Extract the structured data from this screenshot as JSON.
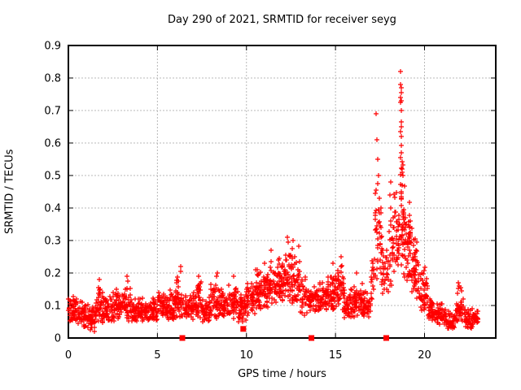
{
  "title": "Day 290 of 2021, SRMTID for receiver seyg",
  "colors": {
    "background": "#ffffff",
    "border": "#000000",
    "grid": "#b8b8b8",
    "marker": "#ff0000",
    "text": "#000000"
  },
  "chart_data": {
    "type": "scatter",
    "title": "Day 290 of 2021, SRMTID for receiver seyg",
    "xlabel": "GPS time / hours",
    "ylabel": "SRMTID / TECUs",
    "xlim": [
      0,
      24
    ],
    "ylim": [
      0,
      0.9
    ],
    "xticks": [
      {
        "value": 0,
        "label": "0"
      },
      {
        "value": 5,
        "label": "5"
      },
      {
        "value": 10,
        "label": "10"
      },
      {
        "value": 15,
        "label": "15"
      },
      {
        "value": 20,
        "label": "20"
      }
    ],
    "yticks": [
      {
        "value": 0.0,
        "label": "0"
      },
      {
        "value": 0.1,
        "label": "0.1"
      },
      {
        "value": 0.2,
        "label": "0.2"
      },
      {
        "value": 0.3,
        "label": "0.3"
      },
      {
        "value": 0.4,
        "label": "0.4"
      },
      {
        "value": 0.5,
        "label": "0.5"
      },
      {
        "value": 0.6,
        "label": "0.6"
      },
      {
        "value": 0.7,
        "label": "0.7"
      },
      {
        "value": 0.8,
        "label": "0.8"
      }
    ],
    "grid": {
      "show": true,
      "style": "dashed",
      "at": "major-ticks"
    },
    "marker": {
      "symbol": "plus",
      "size": 7,
      "color": "#ff0000"
    },
    "bands_format": "[x_start_hours, x_end_hours, y_min_TECUs, y_max_TECUs, n_points] — dense scatter envelope read from plot",
    "bands": [
      [
        0.0,
        0.5,
        0.05,
        0.13,
        48
      ],
      [
        0.5,
        1.0,
        0.03,
        0.12,
        48
      ],
      [
        1.0,
        1.5,
        0.02,
        0.11,
        48
      ],
      [
        1.5,
        2.0,
        0.04,
        0.16,
        50
      ],
      [
        2.0,
        2.5,
        0.05,
        0.13,
        48
      ],
      [
        2.5,
        3.0,
        0.05,
        0.16,
        48
      ],
      [
        3.0,
        3.5,
        0.05,
        0.17,
        48
      ],
      [
        3.5,
        4.0,
        0.05,
        0.13,
        48
      ],
      [
        4.0,
        4.5,
        0.05,
        0.13,
        48
      ],
      [
        4.5,
        5.0,
        0.05,
        0.14,
        48
      ],
      [
        5.0,
        5.5,
        0.06,
        0.16,
        48
      ],
      [
        5.5,
        6.0,
        0.05,
        0.16,
        48
      ],
      [
        6.0,
        6.5,
        0.06,
        0.19,
        48
      ],
      [
        6.5,
        7.0,
        0.05,
        0.15,
        48
      ],
      [
        7.0,
        7.5,
        0.06,
        0.18,
        48
      ],
      [
        7.5,
        8.0,
        0.05,
        0.14,
        48
      ],
      [
        8.0,
        8.5,
        0.06,
        0.19,
        48
      ],
      [
        8.5,
        9.0,
        0.06,
        0.16,
        48
      ],
      [
        9.0,
        9.5,
        0.06,
        0.18,
        48
      ],
      [
        9.5,
        10.0,
        0.05,
        0.15,
        48
      ],
      [
        10.0,
        10.5,
        0.07,
        0.18,
        48
      ],
      [
        10.5,
        11.0,
        0.08,
        0.22,
        50
      ],
      [
        11.0,
        11.5,
        0.09,
        0.26,
        50
      ],
      [
        11.5,
        12.0,
        0.1,
        0.26,
        50
      ],
      [
        12.0,
        12.5,
        0.1,
        0.3,
        52
      ],
      [
        12.5,
        13.0,
        0.1,
        0.29,
        52
      ],
      [
        13.0,
        13.5,
        0.06,
        0.2,
        36
      ],
      [
        13.5,
        14.0,
        0.08,
        0.18,
        42
      ],
      [
        14.0,
        14.5,
        0.08,
        0.18,
        46
      ],
      [
        14.5,
        15.0,
        0.08,
        0.22,
        48
      ],
      [
        15.0,
        15.5,
        0.08,
        0.24,
        46
      ],
      [
        15.5,
        16.0,
        0.06,
        0.16,
        46
      ],
      [
        16.0,
        16.5,
        0.06,
        0.18,
        46
      ],
      [
        16.5,
        17.0,
        0.06,
        0.16,
        42
      ],
      [
        17.0,
        17.2,
        0.1,
        0.25,
        14
      ],
      [
        17.2,
        17.6,
        0.18,
        0.52,
        40
      ],
      [
        17.6,
        18.0,
        0.12,
        0.3,
        30
      ],
      [
        18.0,
        18.3,
        0.14,
        0.46,
        26
      ],
      [
        18.3,
        18.6,
        0.18,
        0.5,
        30
      ],
      [
        18.6,
        18.9,
        0.16,
        0.62,
        44
      ],
      [
        18.9,
        19.3,
        0.15,
        0.45,
        52
      ],
      [
        19.3,
        19.7,
        0.12,
        0.32,
        48
      ],
      [
        19.7,
        20.2,
        0.08,
        0.24,
        46
      ],
      [
        20.2,
        20.7,
        0.05,
        0.13,
        46
      ],
      [
        20.7,
        21.2,
        0.04,
        0.11,
        44
      ],
      [
        21.2,
        21.7,
        0.02,
        0.09,
        40
      ],
      [
        21.7,
        22.2,
        0.04,
        0.16,
        44
      ],
      [
        22.2,
        22.7,
        0.03,
        0.1,
        44
      ],
      [
        22.7,
        23.0,
        0.04,
        0.09,
        26
      ]
    ],
    "notable_points_format": "[x_hours, y_TECUs] — individually visible high/outlier markers",
    "notable_points": [
      [
        1.75,
        0.18
      ],
      [
        3.3,
        0.19
      ],
      [
        3.32,
        0.175
      ],
      [
        6.3,
        0.22
      ],
      [
        6.32,
        0.205
      ],
      [
        7.3,
        0.19
      ],
      [
        8.3,
        0.19
      ],
      [
        8.35,
        0.2
      ],
      [
        9.3,
        0.19
      ],
      [
        11.4,
        0.27
      ],
      [
        12.3,
        0.31
      ],
      [
        12.35,
        0.295
      ],
      [
        12.6,
        0.3
      ],
      [
        14.85,
        0.23
      ],
      [
        15.3,
        0.25
      ],
      [
        16.2,
        0.2
      ],
      [
        17.3,
        0.69
      ],
      [
        17.32,
        0.61
      ],
      [
        17.35,
        0.55
      ],
      [
        17.4,
        0.5
      ],
      [
        18.05,
        0.44
      ],
      [
        18.08,
        0.4
      ],
      [
        18.1,
        0.48
      ],
      [
        18.65,
        0.82
      ],
      [
        18.66,
        0.78
      ],
      [
        18.68,
        0.77
      ],
      [
        18.7,
        0.755
      ],
      [
        18.67,
        0.74
      ],
      [
        18.69,
        0.73
      ],
      [
        18.66,
        0.725
      ],
      [
        18.71,
        0.7
      ],
      [
        18.68,
        0.665
      ],
      [
        18.7,
        0.65
      ],
      [
        18.66,
        0.635
      ],
      [
        18.69,
        0.62
      ],
      [
        18.72,
        0.57
      ],
      [
        18.67,
        0.555
      ],
      [
        18.75,
        0.52
      ],
      [
        18.78,
        0.5
      ],
      [
        18.73,
        0.47
      ],
      [
        21.9,
        0.17
      ],
      [
        21.95,
        0.16
      ]
    ],
    "event_squares_format": "[x_hours, y_TECUs] — red filled squares drawn on/near the x-axis",
    "event_squares": [
      [
        6.4,
        0.0
      ],
      [
        9.82,
        0.028
      ],
      [
        13.65,
        0.0
      ],
      [
        17.85,
        0.0
      ]
    ]
  }
}
